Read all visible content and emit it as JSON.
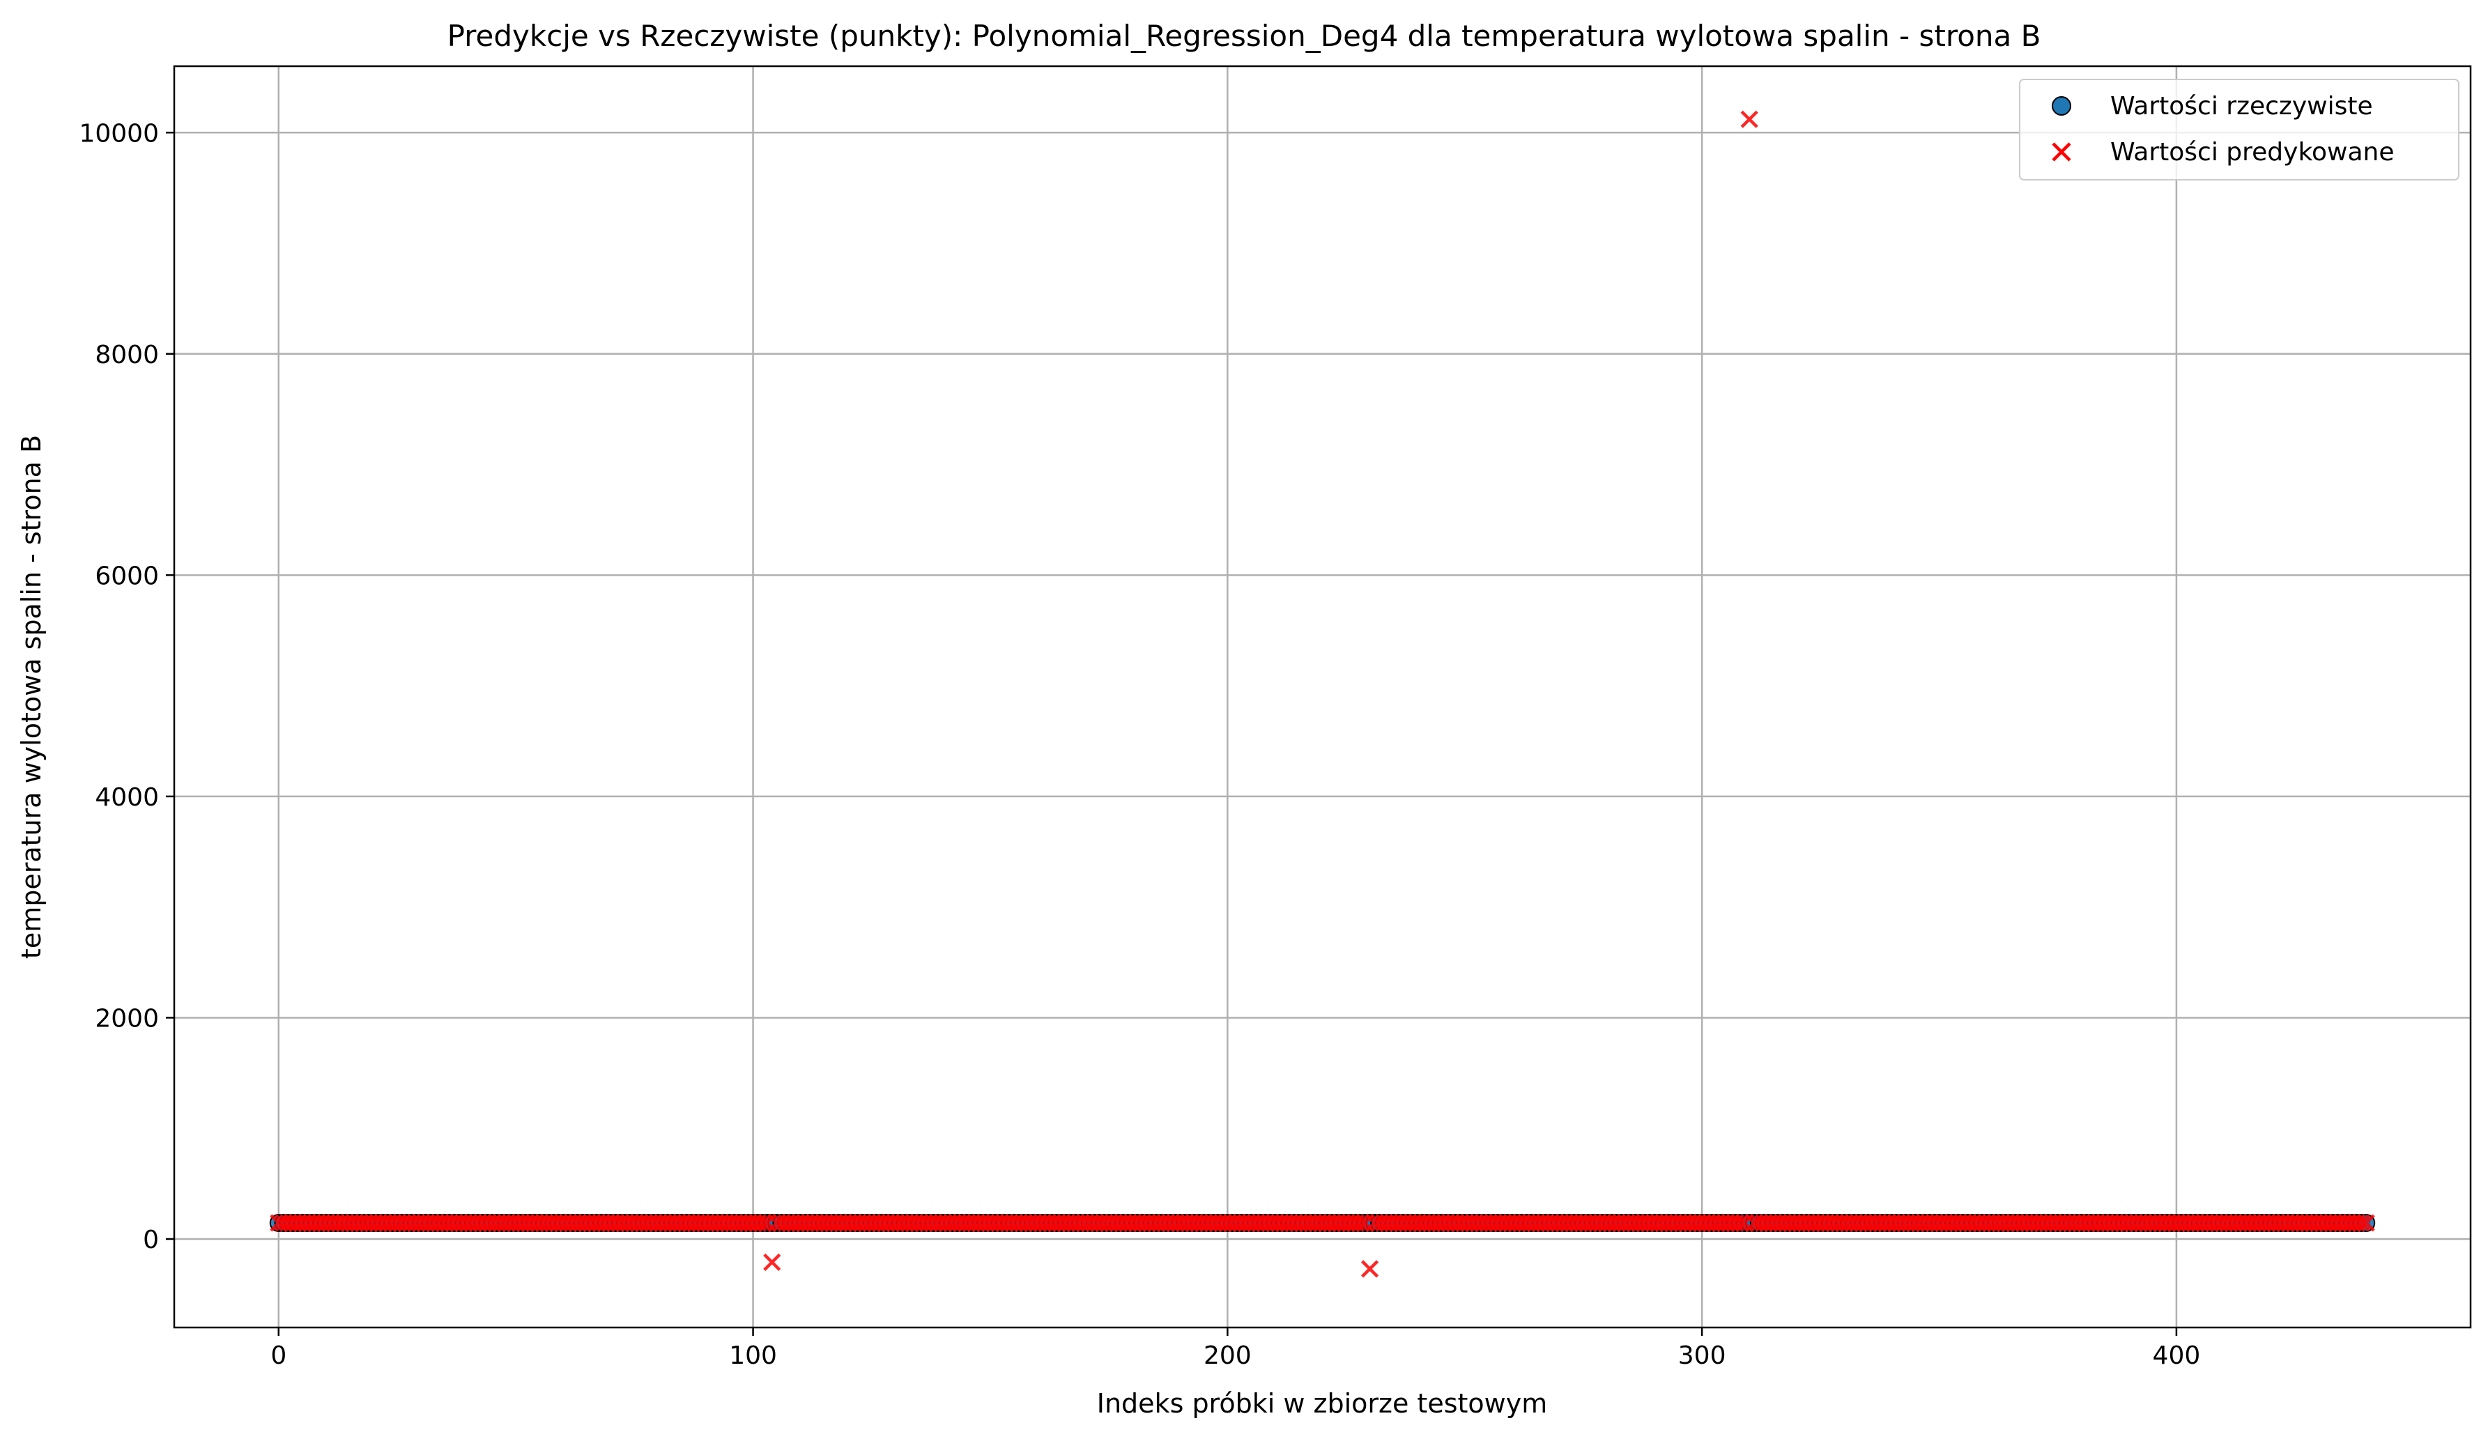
{
  "chart_data": {
    "type": "scatter",
    "title": "Predykcje vs Rzeczywiste (punkty): Polynomial_Regression_Deg4 dla temperatura wylotowa spalin - strona B",
    "xlabel": "Indeks próbki w zbiorze testowym",
    "ylabel": "temperatura wylotowa spalin - strona B",
    "xlim": [
      -22,
      462
    ],
    "ylim": [
      -800,
      10600
    ],
    "xticks": [
      0,
      100,
      200,
      300,
      400
    ],
    "yticks": [
      0,
      2000,
      4000,
      6000,
      8000,
      10000
    ],
    "grid": true,
    "legend_position": "top-right",
    "n_points": 441,
    "series": [
      {
        "name": "Wartości rzeczywiste",
        "marker": "circle",
        "color": "#1f77b4",
        "edgecolor": "#000000",
        "baseline": 145,
        "outliers": []
      },
      {
        "name": "Wartości predykowane",
        "marker": "x",
        "color": "#ff0000",
        "baseline": 145,
        "outliers": [
          {
            "x": 104,
            "y": -210
          },
          {
            "x": 230,
            "y": -270
          },
          {
            "x": 310,
            "y": 10120
          }
        ]
      }
    ]
  }
}
